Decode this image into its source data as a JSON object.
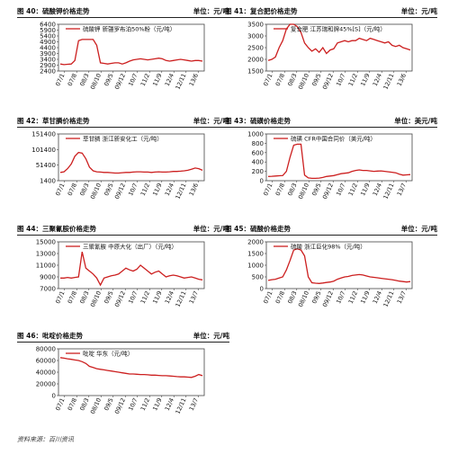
{
  "source": "资料来源：百川资讯",
  "chart_data": [
    {
      "type": "line",
      "header": "图 40：硫酸钾价格走势",
      "unit": "单位：元/吨",
      "legend": "硫酸钾 新疆罗布泊50%粉（元/吨）",
      "x_ticks": [
        "07/1",
        "07/8",
        "08/3",
        "08/10",
        "09/5",
        "09/12",
        "10/7",
        "11/2",
        "11/9",
        "12/4",
        "12/11",
        "13/6"
      ],
      "y_ticks": [
        2400,
        2900,
        3400,
        3900,
        4400,
        4900,
        5400,
        5900,
        6400
      ],
      "ylim": [
        2400,
        6400
      ],
      "color": "#cc1f1f",
      "series": [
        {
          "values": [
            3000,
            2950,
            2980,
            3000,
            3300,
            5000,
            5100,
            5100,
            5100,
            5100,
            4600,
            3100,
            3050,
            3000,
            3050,
            3100,
            3100,
            3000,
            3100,
            3250,
            3350,
            3400,
            3450,
            3400,
            3350,
            3400,
            3450,
            3500,
            3450,
            3300,
            3250,
            3300,
            3350,
            3400,
            3350,
            3300,
            3250,
            3300,
            3300,
            3250
          ]
        }
      ]
    },
    {
      "type": "line",
      "header": "图 41：复合肥价格走势",
      "unit": "单位：元/吨",
      "legend": "复合肥 江苏瑞和牌45%[S]（元/吨）",
      "x_ticks": [
        "07/1",
        "07/8",
        "08/3",
        "08/10",
        "09/5",
        "09/12",
        "10/7",
        "11/2",
        "11/9",
        "12/4",
        "12/11",
        "13/6"
      ],
      "y_ticks": [
        1500,
        2000,
        2500,
        3000,
        3500
      ],
      "ylim": [
        1500,
        3500
      ],
      "color": "#cc1f1f",
      "series": [
        {
          "values": [
            1950,
            2000,
            2100,
            2500,
            2800,
            3300,
            3500,
            3500,
            3400,
            3150,
            2700,
            2500,
            2350,
            2450,
            2300,
            2500,
            2250,
            2400,
            2450,
            2700,
            2750,
            2800,
            2750,
            2800,
            2800,
            2900,
            2850,
            2800,
            2900,
            2850,
            2800,
            2750,
            2700,
            2750,
            2600,
            2550,
            2600,
            2500,
            2450,
            2400
          ]
        }
      ]
    },
    {
      "type": "line",
      "header": "图 42：草甘膦价格走势",
      "unit": "单位：元/吨",
      "legend": "草甘膦 浙江新安化工（元/吨）",
      "x_ticks": [
        "07/1",
        "07/8",
        "08/3",
        "08/10",
        "09/5",
        "09/12",
        "10/7",
        "11/2",
        "11/9",
        "12/4",
        "12/11",
        "13/6"
      ],
      "y_ticks": [
        1400,
        51400,
        101400,
        151400
      ],
      "ylim": [
        1400,
        151400
      ],
      "color": "#cc1f1f",
      "series": [
        {
          "values": [
            28000,
            30000,
            40000,
            55000,
            80000,
            92000,
            90000,
            72000,
            45000,
            33000,
            30000,
            29000,
            28000,
            28000,
            27000,
            26000,
            26000,
            27000,
            28000,
            28000,
            29000,
            30000,
            30000,
            29000,
            29000,
            28000,
            29000,
            30000,
            29000,
            29000,
            30000,
            31000,
            31000,
            32000,
            33000,
            35000,
            38000,
            42000,
            40000,
            35000
          ]
        }
      ]
    },
    {
      "type": "line",
      "header": "图 43：硫磺价格走势",
      "unit": "单位：美元/吨",
      "legend": "硫磺 CFR中国合同价（美元/吨）",
      "x_ticks": [
        "07/1",
        "07/8",
        "08/3",
        "08/10",
        "09/5",
        "09/12",
        "10/7",
        "11/2",
        "11/9",
        "12/4",
        "12/11",
        "13/7"
      ],
      "y_ticks": [
        0,
        200,
        400,
        600,
        800,
        1000
      ],
      "ylim": [
        0,
        1000
      ],
      "color": "#cc1f1f",
      "series": [
        {
          "values": [
            90,
            95,
            100,
            105,
            110,
            200,
            500,
            760,
            780,
            780,
            120,
            60,
            50,
            50,
            55,
            70,
            90,
            100,
            110,
            130,
            150,
            160,
            170,
            200,
            220,
            230,
            220,
            220,
            210,
            200,
            205,
            210,
            200,
            190,
            180,
            170,
            140,
            120,
            125,
            130
          ]
        }
      ]
    },
    {
      "type": "line",
      "header": "图 44：三聚氰胺价格走势",
      "unit": "单位：元/吨",
      "legend": "三聚氰胺 中原大化（出厂）（元/吨）",
      "x_ticks": [
        "07/1",
        "07/8",
        "08/3",
        "08/10",
        "09/5",
        "09/12",
        "10/7",
        "11/2",
        "11/9",
        "12/4",
        "12/11",
        "13/7"
      ],
      "y_ticks": [
        7000,
        9000,
        11000,
        13000,
        15000
      ],
      "ylim": [
        7000,
        15000
      ],
      "color": "#cc1f1f",
      "series": [
        {
          "values": [
            8800,
            8800,
            8900,
            8800,
            8900,
            9000,
            13300,
            10500,
            10000,
            9500,
            8800,
            7600,
            8800,
            9000,
            9200,
            9300,
            9500,
            10000,
            10500,
            10200,
            10000,
            10300,
            11000,
            10500,
            10000,
            9500,
            9800,
            10000,
            9500,
            9000,
            9200,
            9300,
            9200,
            9000,
            8800,
            8900,
            9000,
            8800,
            8600,
            8500
          ]
        }
      ]
    },
    {
      "type": "line",
      "header": "图 45：硫酸价格走势",
      "unit": "单位：元/吨",
      "legend": "硫酸 浙江巨化98%（元/吨）",
      "x_ticks": [
        "07/1",
        "07/8",
        "08/3",
        "08/10",
        "09/5",
        "09/12",
        "10/7",
        "11/2",
        "11/9",
        "12/4",
        "12/11",
        "13/7"
      ],
      "y_ticks": [
        0,
        500,
        1000,
        1500,
        2000
      ],
      "ylim": [
        0,
        2000
      ],
      "color": "#cc1f1f",
      "series": [
        {
          "values": [
            350,
            380,
            400,
            450,
            500,
            800,
            1200,
            1650,
            1700,
            1650,
            1400,
            500,
            250,
            230,
            220,
            240,
            260,
            280,
            320,
            400,
            450,
            500,
            520,
            560,
            580,
            600,
            580,
            540,
            500,
            480,
            460,
            440,
            420,
            400,
            380,
            350,
            320,
            300,
            280,
            300
          ]
        }
      ]
    },
    {
      "type": "line",
      "header": "图 46：吡啶价格走势",
      "unit": "单位：元/吨",
      "legend": "吡啶 华东（元/吨）",
      "x_ticks": [
        "07/1",
        "07/8",
        "08/3",
        "08/10",
        "09/5",
        "09/12",
        "10/7",
        "11/2",
        "11/9",
        "12/4",
        "12/11",
        "13/7"
      ],
      "y_ticks": [
        0,
        20000,
        40000,
        60000,
        80000
      ],
      "ylim": [
        0,
        80000
      ],
      "color": "#cc1f1f",
      "series": [
        {
          "values": [
            65000,
            64000,
            63000,
            62000,
            61000,
            60000,
            58000,
            55000,
            50000,
            48000,
            46000,
            45000,
            44000,
            43000,
            42000,
            41000,
            40000,
            39000,
            38000,
            37000,
            37000,
            36500,
            36000,
            36000,
            35500,
            35000,
            35000,
            34500,
            34000,
            34000,
            33500,
            33000,
            32500,
            32000,
            32000,
            31500,
            31000,
            33000,
            36000,
            34000
          ]
        }
      ]
    }
  ]
}
